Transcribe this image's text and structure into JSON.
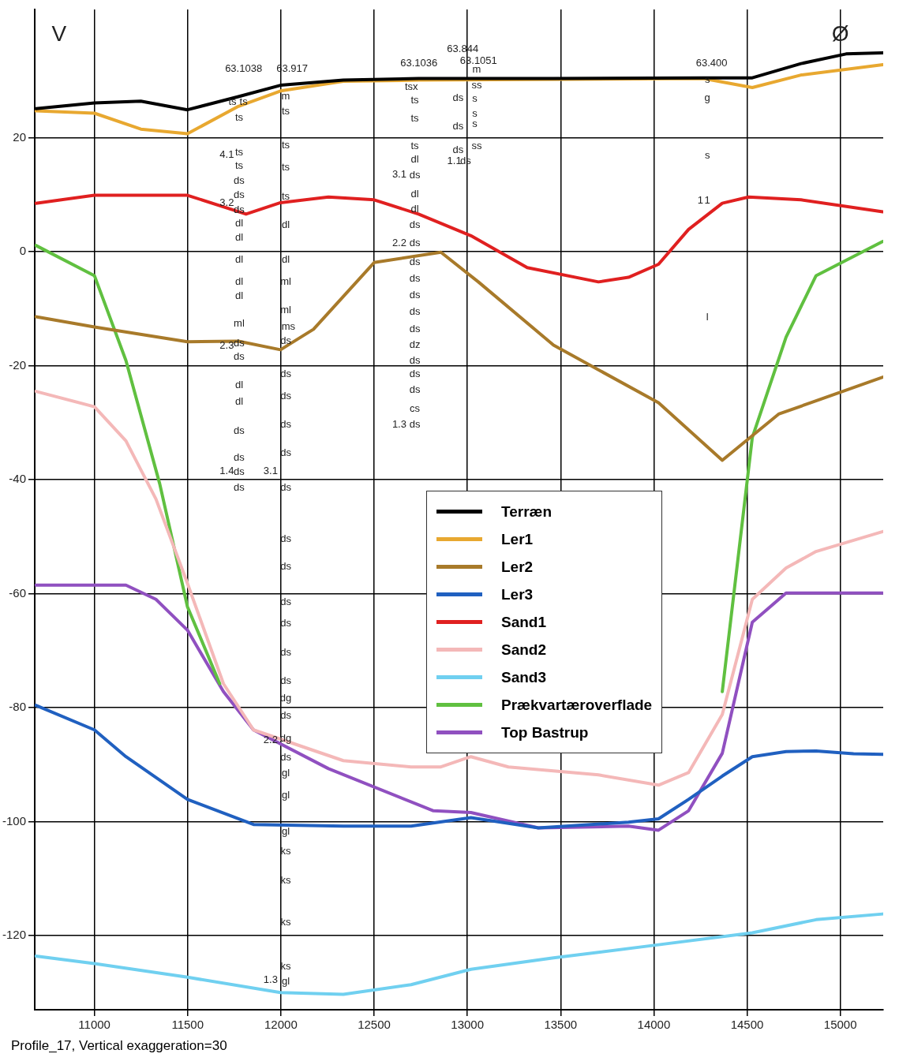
{
  "chart_data": {
    "type": "line",
    "xlim": [
      10680,
      15230
    ],
    "ylim": [
      -133,
      42.5
    ],
    "xticks": [
      11000,
      11500,
      12000,
      12500,
      13000,
      13500,
      14000,
      14500,
      15000
    ],
    "yticks": [
      -120,
      -100,
      -80,
      -60,
      -40,
      -20,
      0,
      20
    ],
    "grid": true,
    "legend": "center",
    "marker": "none",
    "line_style": "solid",
    "series": [
      {
        "name": "Terræn",
        "color": "#000000",
        "x": [
          10686,
          11000,
          11249,
          11499,
          11772,
          11998,
          12335,
          12738,
          13462,
          14266,
          14528,
          14789,
          15031,
          15228
        ],
        "values": [
          25.1,
          26.1,
          26.4,
          24.9,
          27.2,
          29.2,
          30.1,
          30.4,
          30.4,
          30.5,
          30.5,
          33.0,
          34.7,
          34.9
        ]
      },
      {
        "name": "Ler1",
        "color": "#e8a830",
        "x": [
          10686,
          11000,
          11249,
          11499,
          11772,
          11998,
          12335,
          12738,
          14266,
          14528,
          14789,
          15228
        ],
        "values": [
          24.7,
          24.3,
          21.5,
          20.7,
          25.5,
          28.2,
          29.9,
          30.1,
          30.4,
          28.8,
          31.0,
          32.8
        ]
      },
      {
        "name": "Ler2",
        "color": "#a87a2a",
        "x": [
          10686,
          11000,
          11499,
          11772,
          11998,
          12175,
          12500,
          12858,
          13059,
          13462,
          14025,
          14367,
          14669,
          15228
        ],
        "values": [
          -11.4,
          -13.2,
          -15.8,
          -15.7,
          -17.2,
          -13.6,
          -1.9,
          -0.1,
          -5.3,
          -16.4,
          -26.5,
          -36.6,
          -28.5,
          -22.0
        ]
      },
      {
        "name": "Ler3",
        "color": "#2060c0",
        "x": [
          10686,
          11000,
          11169,
          11499,
          11853,
          12335,
          12698,
          13019,
          13381,
          13864,
          14025,
          14186,
          14367,
          14528,
          14709,
          14870,
          15071,
          15228
        ],
        "values": [
          -79.6,
          -83.9,
          -88.6,
          -96.1,
          -100.5,
          -100.8,
          -100.8,
          -99.3,
          -101.1,
          -100.1,
          -99.5,
          -96.1,
          -92.0,
          -88.6,
          -87.7,
          -87.6,
          -88.1,
          -88.2
        ]
      },
      {
        "name": "Sand1",
        "color": "#e02020",
        "x": [
          10686,
          11000,
          11499,
          11813,
          11998,
          12255,
          12500,
          12738,
          13019,
          13321,
          13703,
          13864,
          14025,
          14186,
          14367,
          14508,
          14789,
          15228
        ],
        "values": [
          8.5,
          9.9,
          9.9,
          6.6,
          8.6,
          9.6,
          9.1,
          6.6,
          2.8,
          -2.8,
          -5.3,
          -4.5,
          -2.2,
          3.9,
          8.5,
          9.6,
          9.1,
          7.0
        ]
      },
      {
        "name": "Sand2",
        "color": "#f4b8b8",
        "x": [
          10686,
          11000,
          11169,
          11330,
          11499,
          11692,
          11853,
          12335,
          12698,
          12858,
          13019,
          13220,
          13703,
          14025,
          14186,
          14367,
          14528,
          14709,
          14870,
          15228
        ],
        "values": [
          -24.5,
          -27.2,
          -33.2,
          -43.4,
          -58.2,
          -75.8,
          -83.9,
          -89.3,
          -90.4,
          -90.4,
          -88.6,
          -90.4,
          -91.8,
          -93.6,
          -91.4,
          -81.2,
          -61.0,
          -55.5,
          -52.6,
          -49.1
        ]
      },
      {
        "name": "Sand3",
        "color": "#70d0f0",
        "x": [
          10686,
          11000,
          11499,
          11998,
          12335,
          12698,
          13019,
          13462,
          14025,
          14528,
          14870,
          15228
        ],
        "values": [
          -123.6,
          -124.9,
          -127.3,
          -130.0,
          -130.3,
          -128.6,
          -125.9,
          -123.9,
          -121.6,
          -119.5,
          -117.2,
          -116.2
        ]
      },
      {
        "name": "Prækvartæroverflade",
        "color": "#60c040",
        "x": [
          10686,
          11000,
          11169,
          11350,
          11499,
          11672,
          14206,
          14367,
          14528,
          14709,
          14870,
          15228
        ],
        "values": [
          1.1,
          -4.2,
          -19.1,
          -40.7,
          -62.3,
          -75.8,
          null,
          -77.2,
          -32.6,
          -15.0,
          -4.2,
          1.8
        ]
      },
      {
        "name": "Top Bastrup",
        "color": "#9050c0",
        "x": [
          10686,
          11169,
          11330,
          11499,
          11692,
          11853,
          12255,
          12818,
          13019,
          13381,
          13864,
          14025,
          14186,
          14367,
          14528,
          14709,
          15228
        ],
        "values": [
          -58.5,
          -58.5,
          -61.0,
          -66.4,
          -77.2,
          -83.9,
          -90.7,
          -98.1,
          -98.4,
          -101.1,
          -100.8,
          -101.5,
          -98.1,
          -88.0,
          -65.0,
          -59.9,
          -59.9
        ]
      }
    ],
    "annotations": [
      "V",
      "Ø",
      "Profile_17, Vertical exaggeration=30",
      "63.1038",
      "63.917",
      "63.1036",
      "63.844",
      "63.1051",
      "63.400",
      "ts",
      "ts",
      "ts",
      "ts",
      "ts",
      "ds",
      "ds",
      "ds",
      "dl",
      "dl",
      "dl",
      "dl",
      "dl",
      "ml",
      "ds",
      "ds",
      "dl",
      "dl",
      "ds",
      "ds",
      "ds",
      "ds",
      "4.1",
      "3.2",
      "2.3",
      "1.4",
      "m",
      "ts",
      "ts",
      "ts",
      "ts",
      "dl",
      "dl",
      "ml",
      "ml",
      "ms",
      "ds",
      "ds",
      "ds",
      "ds",
      "ds",
      "ds",
      "ds",
      "ds",
      "ds",
      "ds",
      "ds",
      "ds",
      "dg",
      "ds",
      "dg",
      "ds",
      "gl",
      "gl",
      "gl",
      "ks",
      "ks",
      "ks",
      "ks",
      "gl",
      "3.1",
      "2.2",
      "1.3",
      "tsx",
      "ts",
      "ts",
      "ts",
      "dl",
      "ds",
      "dl",
      "dl",
      "ds",
      "ds",
      "ds",
      "ds",
      "ds",
      "ds",
      "ds",
      "dz",
      "ds",
      "ds",
      "ds",
      "cs",
      "ds",
      "3.1",
      "2.2",
      "1.3",
      "ds",
      "ds",
      "ds",
      "1.1",
      "ds",
      "m",
      "ss",
      "s",
      "s",
      "s",
      "ss",
      "s",
      "g",
      "s",
      "1",
      "1",
      "l"
    ]
  }
}
